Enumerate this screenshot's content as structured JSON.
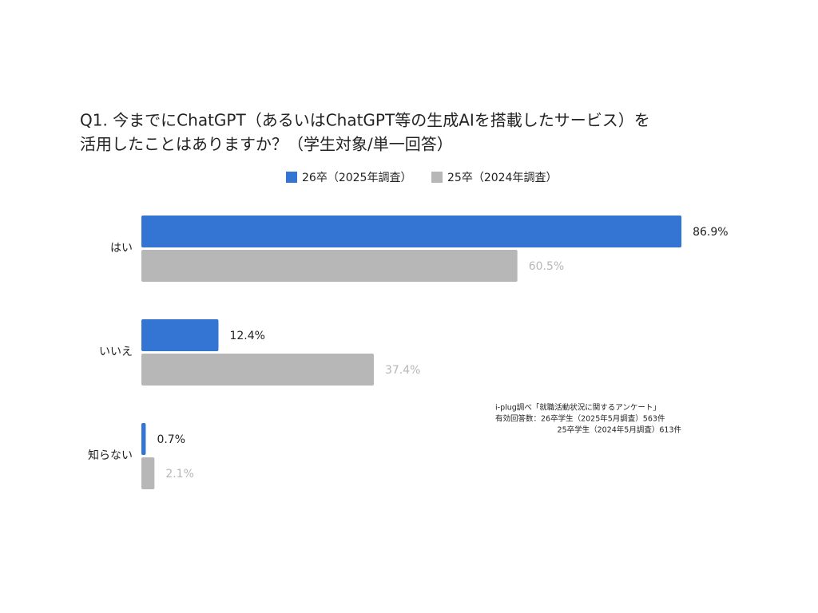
{
  "chart_data": {
    "type": "barh",
    "title": [
      "Q1. 今までにChatGPT（あるいはChatGPT等の生成AIを搭載したサービス）を",
      "活用したことはありますか？（学生対象/単一回答）"
    ],
    "categories": [
      "はい",
      "いいえ",
      "知らない"
    ],
    "series": [
      {
        "name": "26卒（2025年調査）",
        "color": "#3474d3",
        "label_color": "#222222",
        "values": [
          86.9,
          12.4,
          0.7
        ],
        "value_labels": [
          "86.9%",
          "12.4%",
          "0.7%"
        ]
      },
      {
        "name": "25卒（2024年調査）",
        "color": "#b7b7b7",
        "label_color": "#b7b7b7",
        "values": [
          60.5,
          37.4,
          2.1
        ],
        "value_labels": [
          "60.5%",
          "37.4%",
          "2.1%"
        ]
      }
    ],
    "xlim": [
      0,
      100
    ],
    "annotations": [
      "i-plug調べ「就職活動状況に関するアンケート」",
      "有効回答数：26卒学生（2025年5月調査）563件",
      "25卒学生（2024年5月調査）613件"
    ]
  }
}
